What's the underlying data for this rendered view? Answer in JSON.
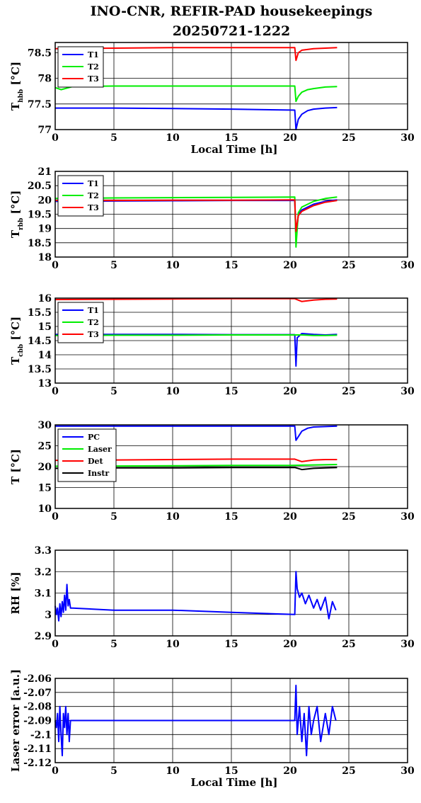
{
  "title": "INO-CNR, REFIR-PAD housekeepings",
  "subtitle": "20250721-1222",
  "colors": {
    "blue": "#0000ff",
    "green": "#00ee00",
    "red": "#ff0000",
    "black": "#000000"
  },
  "chart_data": [
    {
      "type": "line",
      "ylabel_main": "T",
      "ylabel_sub": "hbb",
      "ylabel_unit": " [°C]",
      "xlabel": "Local Time [h]",
      "xlim": [
        0,
        30
      ],
      "ylim": [
        77,
        78.7
      ],
      "xticks": [
        "0",
        "5",
        "10",
        "15",
        "20",
        "25",
        "30"
      ],
      "yticks": [
        77,
        77.5,
        78,
        78.5
      ],
      "ytick_labels": [
        "77",
        "77.5",
        "78",
        "78.5"
      ],
      "grid": true,
      "legend_position": "top-left",
      "series": [
        {
          "name": "T1",
          "color": "#0000ff",
          "x": [
            0,
            5,
            10,
            15,
            20.4,
            20.5,
            20.7,
            21,
            21.5,
            22,
            23,
            24
          ],
          "y": [
            77.42,
            77.42,
            77.41,
            77.4,
            77.38,
            77.0,
            77.2,
            77.3,
            77.37,
            77.4,
            77.42,
            77.43
          ]
        },
        {
          "name": "T2",
          "color": "#00ee00",
          "x": [
            0,
            0.5,
            1.5,
            5,
            10,
            15,
            20.4,
            20.5,
            20.7,
            21,
            21.5,
            22,
            23,
            24
          ],
          "y": [
            77.82,
            77.78,
            77.84,
            77.85,
            77.85,
            77.85,
            77.85,
            77.55,
            77.65,
            77.73,
            77.78,
            77.8,
            77.83,
            77.84
          ]
        },
        {
          "name": "T3",
          "color": "#ff0000",
          "x": [
            0,
            5,
            10,
            15,
            20.4,
            20.5,
            20.7,
            21,
            22,
            23,
            24
          ],
          "y": [
            78.58,
            78.59,
            78.6,
            78.6,
            78.6,
            78.35,
            78.5,
            78.55,
            78.58,
            78.59,
            78.6
          ]
        }
      ]
    },
    {
      "type": "line",
      "ylabel_main": "T",
      "ylabel_sub": "rbb",
      "ylabel_unit": " [°C]",
      "xlabel": "",
      "xlim": [
        0,
        30
      ],
      "ylim": [
        18,
        21
      ],
      "xticks": [
        "0",
        "5",
        "10",
        "15",
        "20",
        "25",
        "30"
      ],
      "yticks": [
        18,
        18.5,
        19,
        19.5,
        20,
        20.5,
        21
      ],
      "ytick_labels": [
        "18",
        "18.5",
        "19",
        "19.5",
        "20",
        "20.5",
        "21"
      ],
      "grid": true,
      "legend_position": "top-left",
      "series": [
        {
          "name": "T1",
          "color": "#0000ff",
          "x": [
            0,
            5,
            10,
            15,
            20.4,
            20.5,
            20.7,
            21,
            22,
            23,
            24
          ],
          "y": [
            19.95,
            19.96,
            19.97,
            19.98,
            19.98,
            18.6,
            19.5,
            19.65,
            19.85,
            19.95,
            20.0
          ]
        },
        {
          "name": "T2",
          "color": "#00ee00",
          "x": [
            0,
            5,
            10,
            15,
            20.4,
            20.5,
            20.7,
            21,
            22,
            23,
            24
          ],
          "y": [
            20.05,
            20.07,
            20.08,
            20.09,
            20.1,
            18.35,
            19.55,
            19.75,
            19.95,
            20.05,
            20.1
          ]
        },
        {
          "name": "T3",
          "color": "#ff0000",
          "x": [
            0,
            5,
            10,
            15,
            20.4,
            20.5,
            20.7,
            21,
            22,
            23,
            24
          ],
          "y": [
            19.98,
            19.98,
            19.99,
            19.99,
            20.0,
            18.9,
            19.45,
            19.6,
            19.8,
            19.92,
            19.98
          ]
        }
      ]
    },
    {
      "type": "line",
      "ylabel_main": "T",
      "ylabel_sub": "cbb",
      "ylabel_unit": " [°C]",
      "xlabel": "",
      "xlim": [
        0,
        30
      ],
      "ylim": [
        13,
        16
      ],
      "xticks": [
        "0",
        "5",
        "10",
        "15",
        "20",
        "25",
        "30"
      ],
      "yticks": [
        13,
        13.5,
        14,
        14.5,
        15,
        15.5,
        16
      ],
      "ytick_labels": [
        "13",
        "13.5",
        "14",
        "14.5",
        "15",
        "15.5",
        "16"
      ],
      "grid": true,
      "legend_position": "top-left",
      "series": [
        {
          "name": "T1",
          "color": "#0000ff",
          "x": [
            0,
            5,
            10,
            15,
            20.4,
            20.5,
            20.6,
            21,
            22,
            23,
            24
          ],
          "y": [
            14.72,
            14.72,
            14.72,
            14.71,
            14.71,
            13.6,
            14.6,
            14.75,
            14.72,
            14.7,
            14.72
          ]
        },
        {
          "name": "T2",
          "color": "#00ee00",
          "x": [
            0,
            5,
            10,
            15,
            20.4,
            21,
            22,
            23,
            24
          ],
          "y": [
            14.68,
            14.69,
            14.69,
            14.7,
            14.7,
            14.7,
            14.68,
            14.68,
            14.69
          ]
        },
        {
          "name": "T3",
          "color": "#ff0000",
          "x": [
            0,
            5,
            10,
            15,
            20.4,
            21,
            22,
            23,
            24
          ],
          "y": [
            15.95,
            15.96,
            15.97,
            15.98,
            15.98,
            15.88,
            15.93,
            15.96,
            15.97
          ]
        }
      ]
    },
    {
      "type": "line",
      "ylabel_main": "T [°C]",
      "ylabel_sub": "",
      "ylabel_unit": "",
      "xlabel": "",
      "xlim": [
        0,
        30
      ],
      "ylim": [
        10,
        30
      ],
      "xticks": [
        "0",
        "5",
        "10",
        "15",
        "20",
        "25",
        "30"
      ],
      "yticks": [
        10,
        15,
        20,
        25,
        30
      ],
      "ytick_labels": [
        "10",
        "15",
        "20",
        "25",
        "30"
      ],
      "grid": true,
      "legend_position": "top-left",
      "series": [
        {
          "name": "PC",
          "color": "#0000ff",
          "x": [
            0,
            5,
            10,
            15,
            20.4,
            20.5,
            21,
            21.5,
            22,
            23,
            24
          ],
          "y": [
            29.7,
            29.7,
            29.7,
            29.7,
            29.7,
            26.3,
            28.5,
            29.2,
            29.5,
            29.6,
            29.7
          ]
        },
        {
          "name": "Laser",
          "color": "#00ee00",
          "x": [
            0,
            5,
            10,
            15,
            20,
            22,
            24
          ],
          "y": [
            20.1,
            20.15,
            20.2,
            20.3,
            20.3,
            20.4,
            20.5
          ]
        },
        {
          "name": "Det",
          "color": "#ff0000",
          "x": [
            0,
            5,
            10,
            15,
            20.4,
            21,
            22,
            23,
            24
          ],
          "y": [
            21.5,
            21.6,
            21.7,
            21.8,
            21.8,
            21.2,
            21.6,
            21.7,
            21.7
          ]
        },
        {
          "name": "Instr",
          "color": "#000000",
          "x": [
            0,
            5,
            10,
            15,
            20.4,
            21,
            22,
            23,
            24
          ],
          "y": [
            19.6,
            19.7,
            19.7,
            19.8,
            19.8,
            19.3,
            19.6,
            19.7,
            19.8
          ]
        }
      ]
    },
    {
      "type": "line",
      "ylabel_main": "RH [%]",
      "ylabel_sub": "",
      "ylabel_unit": "",
      "xlabel": "",
      "xlim": [
        0,
        30
      ],
      "ylim": [
        2.9,
        3.3
      ],
      "xticks": [
        "0",
        "5",
        "10",
        "15",
        "20",
        "25",
        "30"
      ],
      "yticks": [
        2.9,
        3.0,
        3.1,
        3.2,
        3.3
      ],
      "ytick_labels": [
        "2.9",
        "3",
        "3.1",
        "3.2",
        "3.3"
      ],
      "grid": true,
      "legend_position": "none",
      "series": [
        {
          "color": "#0000ff",
          "x": [
            0,
            0.1,
            0.2,
            0.3,
            0.4,
            0.5,
            0.6,
            0.7,
            0.8,
            0.9,
            1.0,
            1.1,
            1.2,
            1.3,
            1.5,
            5,
            10,
            15,
            20.4,
            20.5,
            20.6,
            20.8,
            21,
            21.3,
            21.6,
            22,
            22.3,
            22.6,
            23,
            23.3,
            23.6,
            23.9
          ],
          "y": [
            3.04,
            3.0,
            3.03,
            2.97,
            3.05,
            2.99,
            3.06,
            3.01,
            3.09,
            3.02,
            3.14,
            3.04,
            3.07,
            3.03,
            3.03,
            3.02,
            3.02,
            3.01,
            3.0,
            3.2,
            3.12,
            3.08,
            3.1,
            3.05,
            3.09,
            3.03,
            3.07,
            3.02,
            3.08,
            2.98,
            3.06,
            3.02
          ]
        }
      ]
    },
    {
      "type": "line",
      "ylabel_main": "Laser error [a.u.]",
      "ylabel_sub": "",
      "ylabel_unit": "",
      "xlabel": "Local Time [h]",
      "xlim": [
        0,
        30
      ],
      "ylim": [
        -2.12,
        -2.06
      ],
      "xticks": [
        "0",
        "5",
        "10",
        "15",
        "20",
        "25",
        "30"
      ],
      "yticks": [
        -2.12,
        -2.11,
        -2.1,
        -2.09,
        -2.08,
        -2.07,
        -2.06
      ],
      "ytick_labels": [
        "-2.12",
        "-2.11",
        "-2.1",
        "-2.09",
        "-2.08",
        "-2.07",
        "-2.06"
      ],
      "grid": true,
      "legend_position": "none",
      "series": [
        {
          "color": "#0000ff",
          "x": [
            0,
            0.1,
            0.2,
            0.3,
            0.4,
            0.5,
            0.6,
            0.7,
            0.8,
            0.9,
            1.0,
            1.1,
            1.2,
            1.3,
            1.5,
            5,
            10,
            15,
            20.4,
            20.5,
            20.6,
            20.8,
            21,
            21.2,
            21.4,
            21.6,
            21.8,
            22,
            22.3,
            22.6,
            23,
            23.3,
            23.6,
            23.9
          ],
          "y": [
            -2.09,
            -2.095,
            -2.085,
            -2.105,
            -2.08,
            -2.1,
            -2.115,
            -2.085,
            -2.095,
            -2.08,
            -2.1,
            -2.085,
            -2.105,
            -2.09,
            -2.09,
            -2.09,
            -2.09,
            -2.09,
            -2.09,
            -2.065,
            -2.1,
            -2.08,
            -2.105,
            -2.085,
            -2.115,
            -2.08,
            -2.1,
            -2.09,
            -2.08,
            -2.105,
            -2.085,
            -2.1,
            -2.08,
            -2.09
          ]
        }
      ]
    }
  ]
}
